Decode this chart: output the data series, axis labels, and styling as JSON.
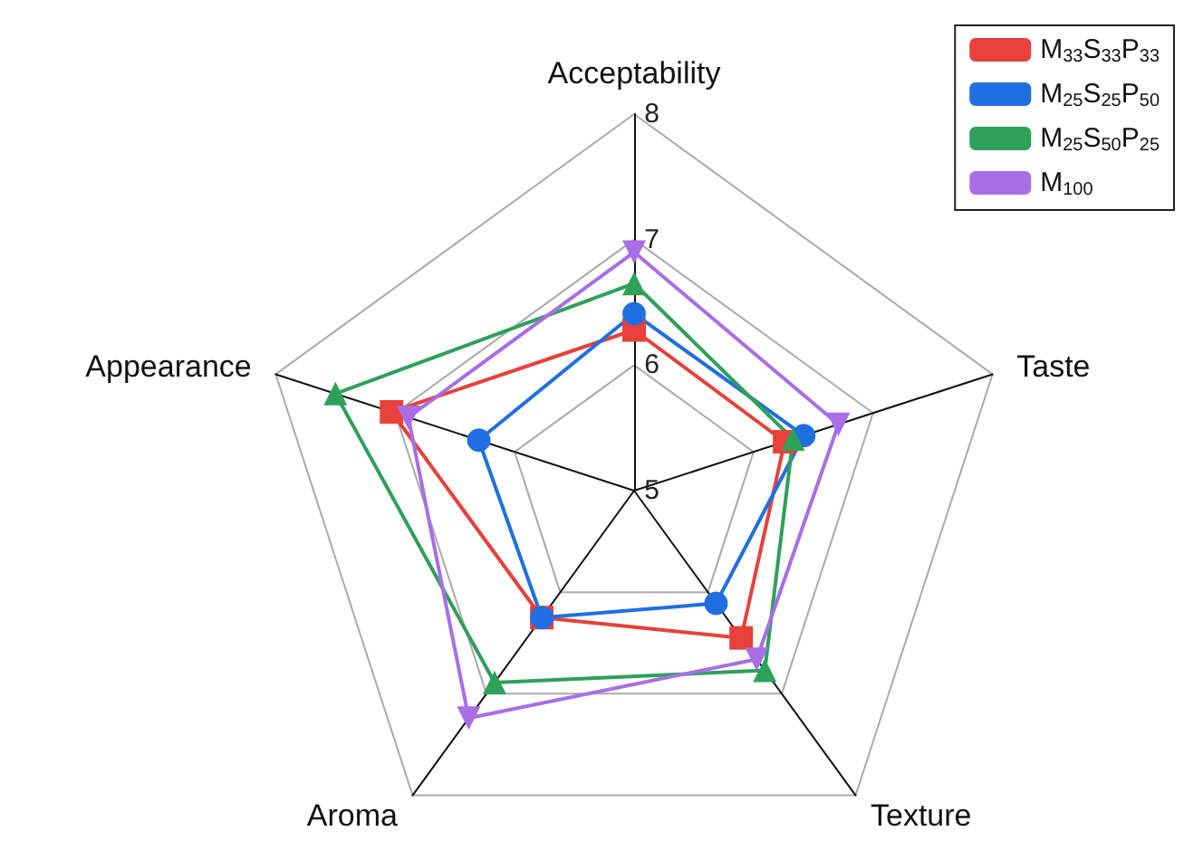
{
  "chart_data": {
    "type": "radar",
    "categories": [
      "Acceptability",
      "Taste",
      "Texture",
      "Aroma",
      "Appearance"
    ],
    "ylim": [
      5,
      8
    ],
    "yticks": [
      5,
      6,
      7,
      8
    ],
    "legend": "top right",
    "series": [
      {
        "name": "M$_{33}$S$_{33}$P$_{33}$",
        "color": "#e8403a",
        "marker": "square",
        "values": [
          6.28,
          6.26,
          6.45,
          6.25,
          7.03
        ]
      },
      {
        "name": "M$_{25}$S$_{25}$P$_{50}$",
        "color": "#1f6fe0",
        "marker": "circle",
        "values": [
          6.41,
          6.42,
          6.11,
          6.25,
          6.3
        ]
      },
      {
        "name": "M$_{25}$S$_{50}$P$_{25}$",
        "color": "#2ea05a",
        "marker": "triangle",
        "values": [
          6.65,
          6.33,
          6.77,
          6.89,
          7.5
        ]
      },
      {
        "name": "M$_{100}$",
        "color": "#a86ee6",
        "marker": "triangle-down",
        "values": [
          6.9,
          6.71,
          6.66,
          7.24,
          6.89
        ]
      }
    ]
  }
}
